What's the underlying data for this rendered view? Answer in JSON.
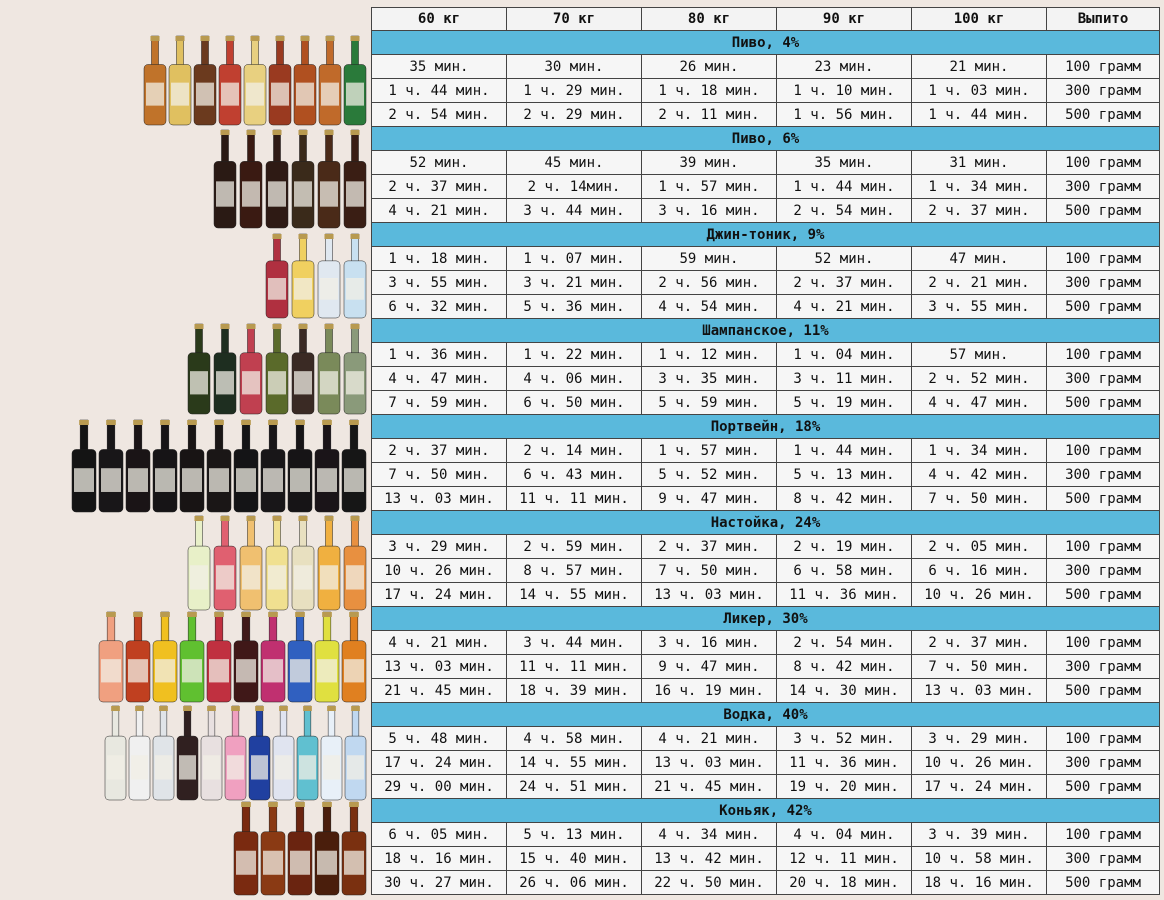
{
  "header": [
    "60 кг",
    "70 кг",
    "80 кг",
    "90 кг",
    "100 кг",
    "Выпито"
  ],
  "sections": [
    {
      "title": "Пиво, 4%",
      "rows": [
        [
          "35 мин.",
          "30 мин.",
          "26 мин.",
          "23 мин.",
          "21 мин.",
          "100 грамм"
        ],
        [
          "1 ч. 44 мин.",
          "1 ч. 29 мин.",
          "1 ч. 18 мин.",
          "1 ч. 10 мин.",
          "1 ч. 03 мин.",
          "300 грамм"
        ],
        [
          "2 ч. 54 мин.",
          "2 ч. 29 мин.",
          "2 ч. 11 мин.",
          "1 ч. 56 мин.",
          "1 ч. 44 мин.",
          "500 грамм"
        ]
      ]
    },
    {
      "title": "Пиво, 6%",
      "rows": [
        [
          "52 мин.",
          "45 мин.",
          "39 мин.",
          "35 мин.",
          "31 мин.",
          "100 грамм"
        ],
        [
          "2 ч. 37 мин.",
          "2 ч. 14мин.",
          "1 ч. 57 мин.",
          "1 ч. 44 мин.",
          "1 ч. 34 мин.",
          "300 грамм"
        ],
        [
          "4 ч. 21 мин.",
          "3 ч. 44 мин.",
          "3 ч. 16 мин.",
          "2 ч. 54 мин.",
          "2 ч. 37 мин.",
          "500 грамм"
        ]
      ]
    },
    {
      "title": "Джин-тоник, 9%",
      "rows": [
        [
          "1 ч. 18 мин.",
          "1 ч. 07 мин.",
          "59 мин.",
          "52 мин.",
          "47 мин.",
          "100 грамм"
        ],
        [
          "3 ч. 55 мин.",
          "3 ч. 21 мин.",
          "2 ч. 56 мин.",
          "2 ч. 37 мин.",
          "2 ч. 21 мин.",
          "300 грамм"
        ],
        [
          "6 ч. 32 мин.",
          "5 ч. 36 мин.",
          "4 ч. 54 мин.",
          "4 ч. 21 мин.",
          "3 ч. 55 мин.",
          "500 грамм"
        ]
      ]
    },
    {
      "title": "Шампанское, 11%",
      "rows": [
        [
          "1 ч. 36 мин.",
          "1 ч. 22 мин.",
          "1 ч. 12 мин.",
          "1 ч. 04 мин.",
          "57 мин.",
          "100 грамм"
        ],
        [
          "4 ч. 47 мин.",
          "4 ч. 06 мин.",
          "3 ч. 35 мин.",
          "3 ч. 11 мин.",
          "2 ч. 52 мин.",
          "300 грамм"
        ],
        [
          "7 ч. 59 мин.",
          "6 ч. 50 мин.",
          "5 ч. 59 мин.",
          "5 ч. 19 мин.",
          "4 ч. 47 мин.",
          "500 грамм"
        ]
      ]
    },
    {
      "title": "Портвейн, 18%",
      "rows": [
        [
          "2 ч. 37 мин.",
          "2 ч. 14 мин.",
          "1 ч. 57 мин.",
          "1 ч. 44 мин.",
          "1 ч. 34 мин.",
          "100 грамм"
        ],
        [
          "7 ч. 50 мин.",
          "6 ч. 43 мин.",
          "5 ч. 52 мин.",
          "5 ч. 13 мин.",
          "4 ч. 42 мин.",
          "300 грамм"
        ],
        [
          "13 ч. 03 мин.",
          "11 ч. 11 мин.",
          "9 ч. 47 мин.",
          "8 ч. 42 мин.",
          "7 ч. 50 мин.",
          "500 грамм"
        ]
      ]
    },
    {
      "title": "Настойка, 24%",
      "rows": [
        [
          "3 ч. 29 мин.",
          "2 ч. 59 мин.",
          "2 ч. 37 мин.",
          "2 ч. 19 мин.",
          "2 ч. 05 мин.",
          "100 грамм"
        ],
        [
          "10 ч. 26 мин.",
          "8 ч. 57 мин.",
          "7 ч. 50 мин.",
          "6 ч. 58 мин.",
          "6 ч. 16 мин.",
          "300 грамм"
        ],
        [
          "17 ч. 24 мин.",
          "14 ч. 55 мин.",
          "13 ч. 03 мин.",
          "11 ч. 36 мин.",
          "10 ч. 26 мин.",
          "500 грамм"
        ]
      ]
    },
    {
      "title": "Ликер, 30%",
      "rows": [
        [
          "4 ч. 21 мин.",
          "3 ч. 44 мин.",
          "3 ч. 16 мин.",
          "2 ч. 54 мин.",
          "2 ч. 37 мин.",
          "100 грамм"
        ],
        [
          "13 ч. 03 мин.",
          "11 ч. 11 мин.",
          "9 ч. 47 мин.",
          "8 ч. 42 мин.",
          "7 ч. 50 мин.",
          "300 грамм"
        ],
        [
          "21 ч. 45 мин.",
          "18 ч. 39 мин.",
          "16 ч. 19 мин.",
          "14 ч. 30 мин.",
          "13 ч. 03 мин.",
          "500 грамм"
        ]
      ]
    },
    {
      "title": "Водка, 40%",
      "rows": [
        [
          "5 ч. 48 мин.",
          "4 ч. 58 мин.",
          "4 ч. 21 мин.",
          "3 ч. 52 мин.",
          "3 ч. 29 мин.",
          "100 грамм"
        ],
        [
          "17 ч. 24 мин.",
          "14 ч. 55 мин.",
          "13 ч. 03 мин.",
          "11 ч. 36 мин.",
          "10 ч. 26 мин.",
          "300 грамм"
        ],
        [
          "29 ч. 00 мин.",
          "24 ч. 51 мин.",
          "21 ч. 45 мин.",
          "19 ч. 20 мин.",
          "17 ч. 24 мин.",
          "500 грамм"
        ]
      ]
    },
    {
      "title": "Коньяк, 42%",
      "rows": [
        [
          "6 ч. 05 мин.",
          "5 ч. 13 мин.",
          "4 ч. 34 мин.",
          "4 ч. 04 мин.",
          "3 ч. 39 мин.",
          "100 грамм"
        ],
        [
          "18 ч. 16 мин.",
          "15 ч. 40 мин.",
          "13 ч. 42 мин.",
          "12 ч. 11 мин.",
          "10 ч. 58 мин.",
          "300 грамм"
        ],
        [
          "30 ч. 27 мин.",
          "26 ч. 06 мин.",
          "22 ч. 50 мин.",
          "20 ч. 18 мин.",
          "18 ч. 16 мин.",
          "500 грамм"
        ]
      ]
    }
  ],
  "bottle_groups": [
    {
      "name": "beer-4",
      "colors": [
        "#c0732a",
        "#e0c060",
        "#6b3a1e",
        "#c04030",
        "#e8d080",
        "#9a3a20",
        "#b05020",
        "#c06a2a",
        "#2a7a3a"
      ]
    },
    {
      "name": "beer-6",
      "colors": [
        "#2a1a14",
        "#3a1a12",
        "#2e1a14",
        "#3a2a1a",
        "#4a2a18",
        "#3a1e14"
      ]
    },
    {
      "name": "gin-tonic",
      "colors": [
        "#b03040",
        "#f0d060",
        "#e0e8f0",
        "#c8e0f0"
      ]
    },
    {
      "name": "champagne",
      "colors": [
        "#2a3a1a",
        "#1e2e20",
        "#c04050",
        "#5a6a2a",
        "#3a2a24",
        "#7a8a5a",
        "#8a9a7a"
      ]
    },
    {
      "name": "port",
      "colors": [
        "#141414",
        "#181618",
        "#1a1416",
        "#161416",
        "#181414",
        "#1a1616",
        "#141416",
        "#181618",
        "#161416",
        "#1a1418",
        "#161616"
      ]
    },
    {
      "name": "nastoyka",
      "colors": [
        "#e8f0c8",
        "#e06070",
        "#f0c070",
        "#f0e090",
        "#e8e0c0",
        "#f0b040",
        "#e89040"
      ]
    },
    {
      "name": "liqueur",
      "colors": [
        "#f0a080",
        "#c04020",
        "#f0c020",
        "#60c030",
        "#c03040",
        "#401818",
        "#c03070",
        "#3060c0",
        "#e0e040",
        "#e08020"
      ]
    },
    {
      "name": "vodka",
      "colors": [
        "#e8e8e0",
        "#f0f0f0",
        "#e0e4e8",
        "#302020",
        "#e8e0e0",
        "#f0a0c0",
        "#2040a0",
        "#e0e4f0",
        "#60c0d0",
        "#e8f0f8",
        "#c0d8f0"
      ]
    },
    {
      "name": "cognac",
      "colors": [
        "#7a2a10",
        "#8a3a14",
        "#6a2410",
        "#4a1e0c",
        "#7a3010"
      ]
    }
  ]
}
